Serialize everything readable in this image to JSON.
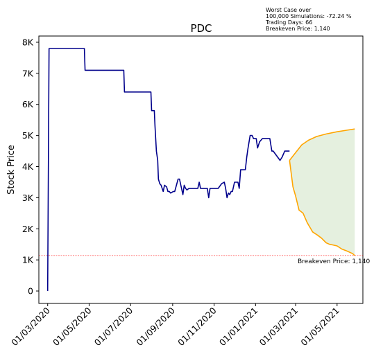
{
  "chart_data": {
    "type": "line",
    "title": "PDC",
    "xlabel": "",
    "ylabel": "Stock Price",
    "x_tick_labels": [
      "01/03/2020",
      "01/05/2020",
      "01/07/2020",
      "01/09/2020",
      "01/11/2020",
      "01/01/2021",
      "01/03/2021",
      "01/05/2021"
    ],
    "x_ticks": [
      "2020-03-01",
      "2020-05-01",
      "2020-07-01",
      "2020-09-01",
      "2020-11-01",
      "2021-01-01",
      "2021-03-01",
      "2021-05-01"
    ],
    "xlim": [
      "2020-02-17",
      "2021-06-08"
    ],
    "y_ticks": [
      0,
      1000,
      2000,
      3000,
      4000,
      5000,
      6000,
      7000,
      8000
    ],
    "y_tick_labels": [
      "0",
      "1K",
      "2K",
      "3K",
      "4K",
      "5K",
      "6K",
      "7K",
      "8K"
    ],
    "ylim": [
      -400,
      8200
    ],
    "annotation_lines": [
      "Worst Case over",
      "100,000 Simulations: -72.24 %",
      "Trading Days: 66",
      "Breakeven Price: 1,140"
    ],
    "breakeven": {
      "value": 1140,
      "label": "Breakeven Price: 1,140",
      "color": "#ff0000"
    },
    "colors": {
      "historical": "#00008b",
      "simulation": "#ffa500",
      "band": "#e5f0df"
    },
    "historical": {
      "x": [
        "2020-03-01",
        "2020-03-03",
        "2020-04-24",
        "2020-04-25",
        "2020-06-21",
        "2020-06-22",
        "2020-07-31",
        "2020-08-01",
        "2020-08-05",
        "2020-08-06",
        "2020-08-08",
        "2020-08-10",
        "2020-08-11",
        "2020-08-13",
        "2020-08-15",
        "2020-08-18",
        "2020-08-20",
        "2020-08-23",
        "2020-08-25",
        "2020-08-27",
        "2020-08-29",
        "2020-09-02",
        "2020-09-04",
        "2020-09-09",
        "2020-09-11",
        "2020-09-16",
        "2020-09-18",
        "2020-09-20",
        "2020-09-22",
        "2020-09-25",
        "2020-09-28",
        "2020-10-01",
        "2020-10-08",
        "2020-10-10",
        "2020-10-12",
        "2020-10-14",
        "2020-10-22",
        "2020-10-24",
        "2020-10-26",
        "2020-10-30",
        "2020-11-03",
        "2020-11-07",
        "2020-11-12",
        "2020-11-16",
        "2020-11-18",
        "2020-11-20",
        "2020-11-22",
        "2020-11-24",
        "2020-11-26",
        "2020-11-28",
        "2020-12-01",
        "2020-12-06",
        "2020-12-08",
        "2020-12-10",
        "2020-12-17",
        "2020-12-19",
        "2020-12-21",
        "2020-12-24",
        "2020-12-27",
        "2020-12-29",
        "2021-01-02",
        "2021-01-04",
        "2021-01-07",
        "2021-01-11",
        "2021-01-14",
        "2021-01-17",
        "2021-01-22",
        "2021-01-25",
        "2021-01-27",
        "2021-02-06",
        "2021-02-09",
        "2021-02-13",
        "2021-02-15",
        "2021-02-16",
        "2021-02-20"
      ],
      "y": [
        0,
        7800,
        7800,
        7100,
        7100,
        6400,
        6400,
        5800,
        5800,
        5300,
        4500,
        4200,
        3600,
        3450,
        3400,
        3200,
        3400,
        3350,
        3200,
        3200,
        3150,
        3200,
        3200,
        3600,
        3600,
        3100,
        3400,
        3300,
        3250,
        3300,
        3300,
        3300,
        3300,
        3500,
        3300,
        3300,
        3300,
        3000,
        3300,
        3300,
        3300,
        3300,
        3450,
        3500,
        3300,
        3000,
        3150,
        3100,
        3200,
        3200,
        3500,
        3500,
        3300,
        3900,
        3900,
        4300,
        4600,
        5000,
        5000,
        4900,
        4900,
        4600,
        4800,
        4900,
        4900,
        4900,
        4900,
        4500,
        4500,
        4200,
        4300,
        4500,
        4500,
        4500,
        4500
      ]
    },
    "simulation_upper": {
      "x": [
        "2021-02-20",
        "2021-03-01",
        "2021-03-10",
        "2021-03-20",
        "2021-04-01",
        "2021-04-15",
        "2021-05-01",
        "2021-05-15",
        "2021-05-27"
      ],
      "y": [
        4200,
        4450,
        4700,
        4850,
        4970,
        5050,
        5120,
        5170,
        5210
      ]
    },
    "simulation_lower": {
      "x": [
        "2021-02-20",
        "2021-02-25",
        "2021-03-01",
        "2021-03-06",
        "2021-03-12",
        "2021-03-18",
        "2021-03-22",
        "2021-03-26",
        "2021-04-02",
        "2021-04-08",
        "2021-04-15",
        "2021-04-20",
        "2021-04-25",
        "2021-05-01",
        "2021-05-08",
        "2021-05-14",
        "2021-05-19",
        "2021-05-24",
        "2021-05-27"
      ],
      "y": [
        4200,
        3350,
        3050,
        2600,
        2500,
        2200,
        2050,
        1900,
        1800,
        1700,
        1550,
        1500,
        1480,
        1450,
        1350,
        1300,
        1250,
        1200,
        1140
      ]
    }
  }
}
